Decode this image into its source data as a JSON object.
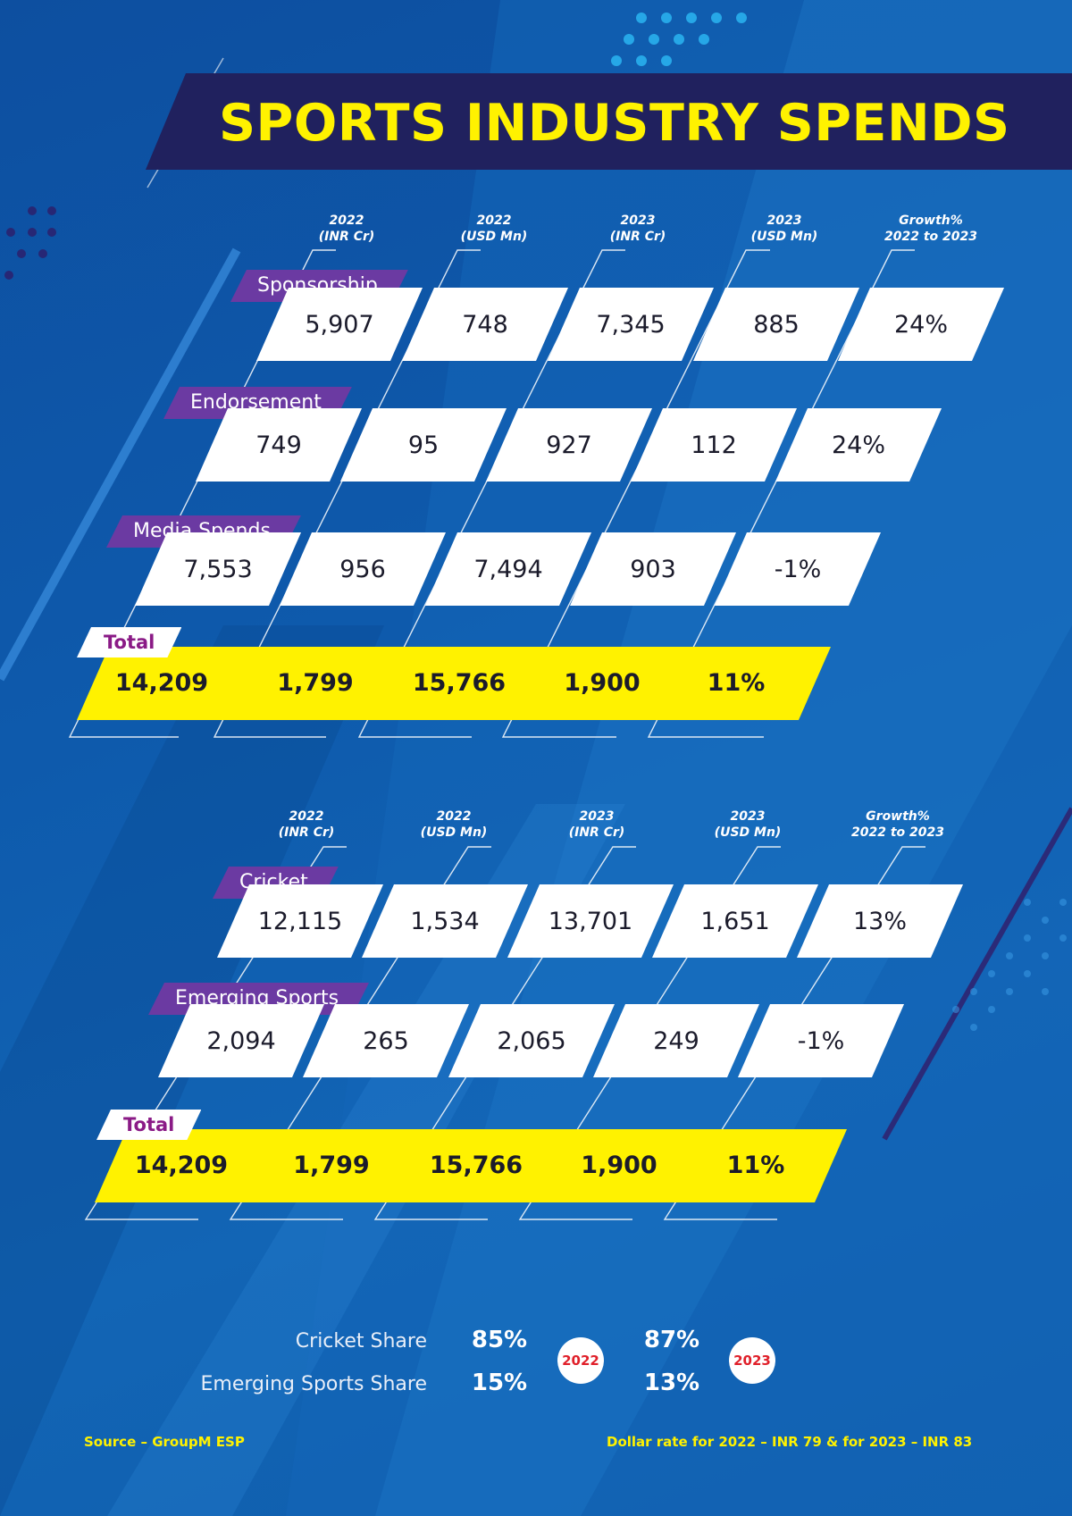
{
  "title": "SPORTS INDUSTRY SPENDS",
  "columns": [
    {
      "line1": "2022",
      "line2": "(INR Cr)"
    },
    {
      "line1": "2022",
      "line2": "(USD Mn)"
    },
    {
      "line1": "2023",
      "line2": "(INR Cr)"
    },
    {
      "line1": "2023",
      "line2": "(USD Mn)"
    },
    {
      "line1": "Growth%",
      "line2": "2022 to 2023"
    }
  ],
  "table1": {
    "rows": [
      {
        "label": "Sponsorship",
        "values": [
          "5,907",
          "748",
          "7,345",
          "885",
          "24%"
        ]
      },
      {
        "label": "Endorsement",
        "values": [
          "749",
          "95",
          "927",
          "112",
          "24%"
        ]
      },
      {
        "label": "Media Spends",
        "values": [
          "7,553",
          "956",
          "7,494",
          "903",
          "-1%"
        ]
      }
    ],
    "total": {
      "label": "Total",
      "values": [
        "14,209",
        "1,799",
        "15,766",
        "1,900",
        "11%"
      ]
    }
  },
  "table2": {
    "rows": [
      {
        "label": "Cricket",
        "values": [
          "12,115",
          "1,534",
          "13,701",
          "1,651",
          "13%"
        ]
      },
      {
        "label": "Emerging Sports",
        "values": [
          "2,094",
          "265",
          "2,065",
          "249",
          "-1%"
        ]
      }
    ],
    "total": {
      "label": "Total",
      "values": [
        "14,209",
        "1,799",
        "15,766",
        "1,900",
        "11%"
      ]
    }
  },
  "share": {
    "cricket_label": "Cricket Share",
    "emerging_label": "Emerging Sports Share",
    "year_2022": "2022",
    "year_2023": "2023",
    "cricket_2022": "85%",
    "emerging_2022": "15%",
    "cricket_2023": "87%",
    "emerging_2023": "13%"
  },
  "footer": {
    "source": "Source – GroupM ESP",
    "dollar_rate": "Dollar rate for 2022 – INR 79 & for 2023 – INR 83"
  },
  "colors": {
    "background": "#0e5aac",
    "banner": "#20215e",
    "title_text": "#fff200",
    "row_label": "#6b3aa2",
    "total_band": "#fff200",
    "total_label_text": "#8a1a86",
    "year_badge_text": "#e0202a"
  }
}
